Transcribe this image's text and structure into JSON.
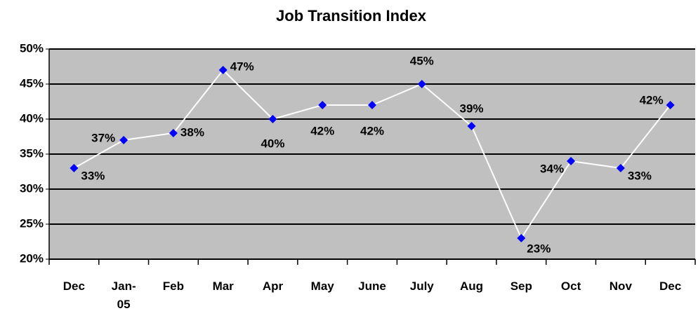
{
  "chart_data": {
    "type": "line",
    "title": "Job Transition Index",
    "categories": [
      "Dec",
      "Jan-05",
      "Feb",
      "Mar",
      "Apr",
      "May",
      "June",
      "July",
      "Aug",
      "Sep",
      "Oct",
      "Nov",
      "Dec"
    ],
    "values": [
      33,
      37,
      38,
      47,
      40,
      42,
      42,
      45,
      39,
      23,
      34,
      33,
      42
    ],
    "value_labels": [
      "33%",
      "37%",
      "38%",
      "47%",
      "40%",
      "42%",
      "42%",
      "45%",
      "39%",
      "23%",
      "34%",
      "33%",
      "42%"
    ],
    "line_color": "#ffffff",
    "marker_color": "#0000ff",
    "plot_background": "#c0c0c0",
    "ylim": [
      20,
      50
    ],
    "yticks": [
      {
        "value": 20,
        "label": "20%"
      },
      {
        "value": 25,
        "label": "25%"
      },
      {
        "value": 30,
        "label": "30%"
      },
      {
        "value": 35,
        "label": "35%"
      },
      {
        "value": 40,
        "label": "40%"
      },
      {
        "value": 45,
        "label": "45%"
      },
      {
        "value": 50,
        "label": "50%"
      }
    ],
    "grid": true
  }
}
